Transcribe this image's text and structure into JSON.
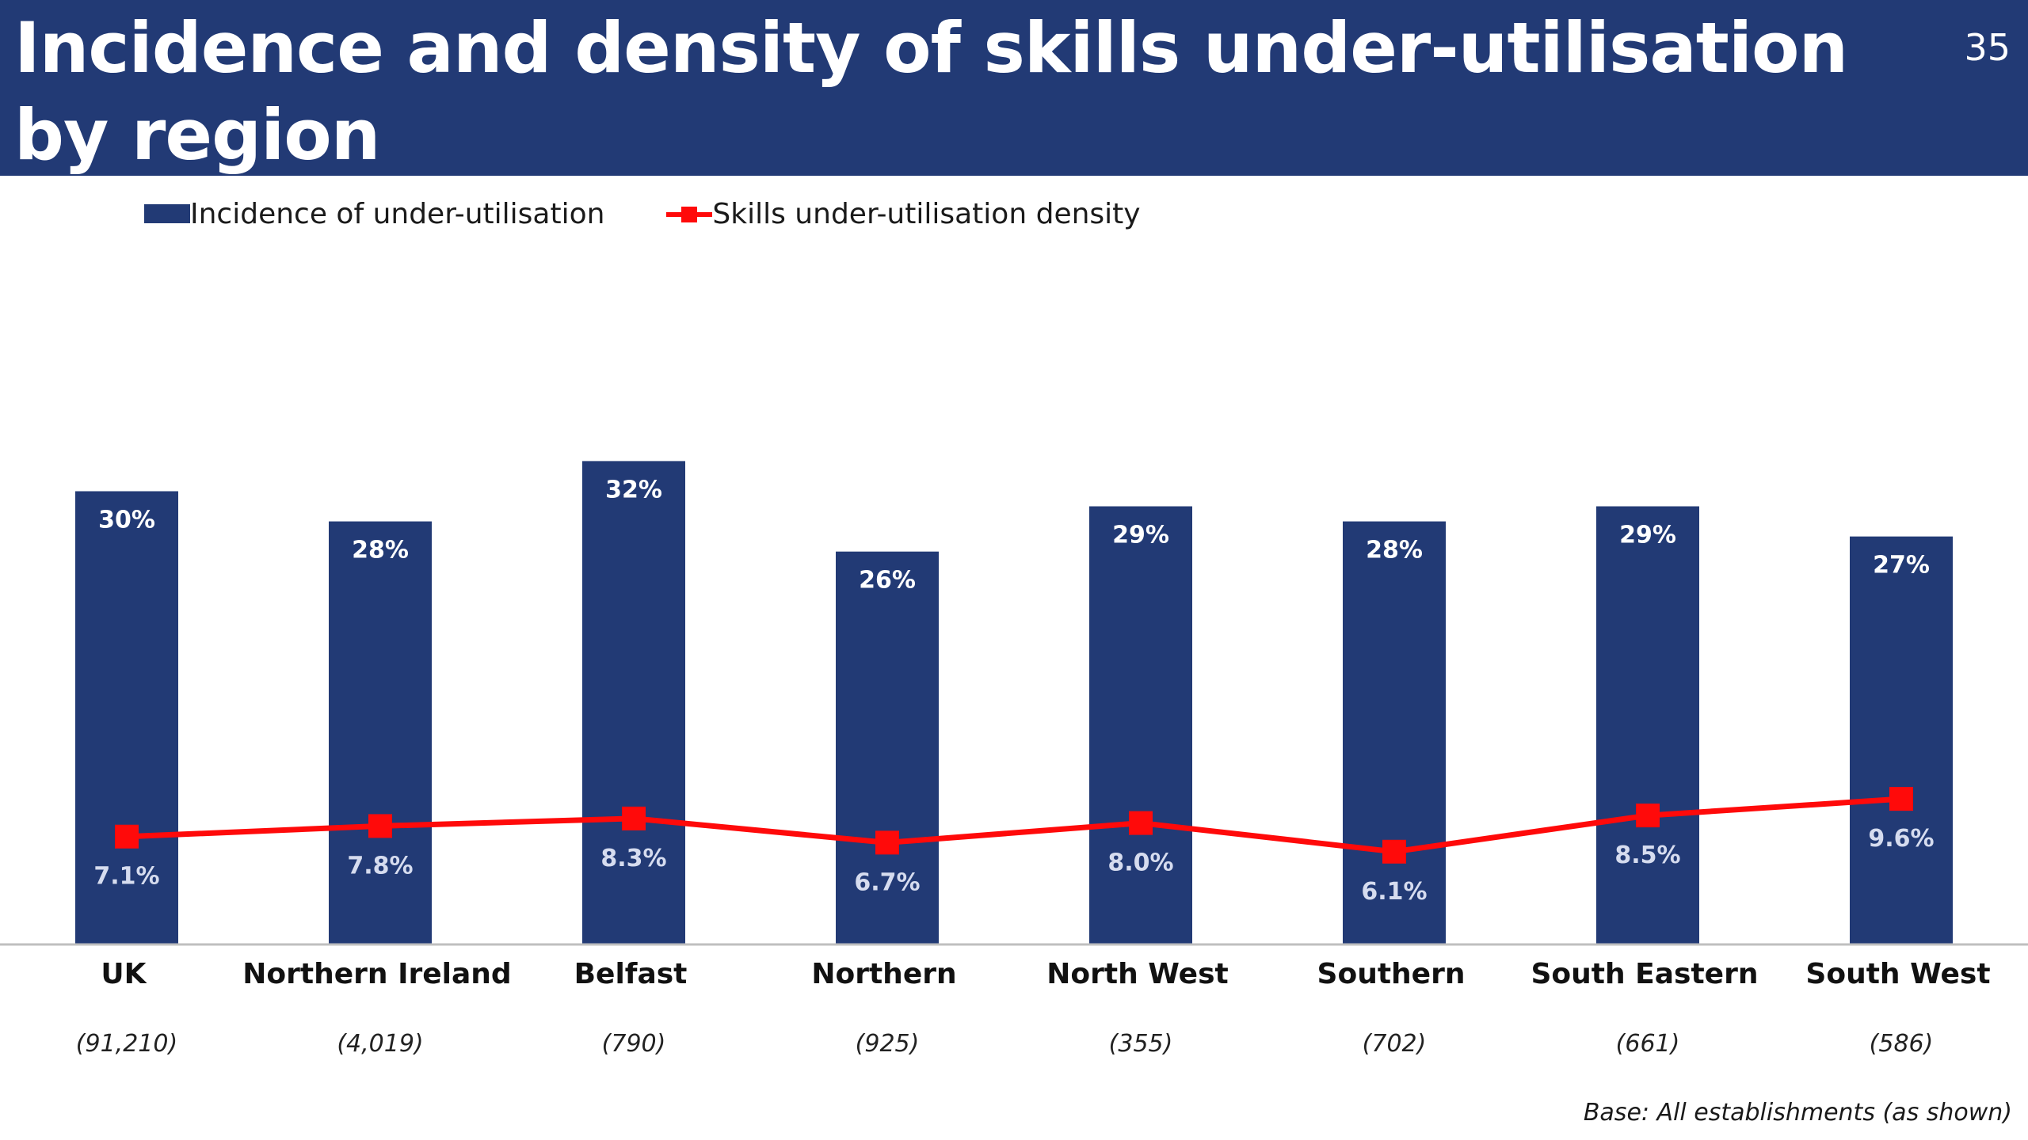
{
  "header": {
    "title": "Incidence and density of skills under-utilisation by region",
    "page_number": "35"
  },
  "legend": {
    "bar_label": "Incidence of under-utilisation",
    "line_label": "Skills under-utilisation density"
  },
  "footnote": "Base: All establishments (as shown)",
  "colors": {
    "header_bg": "#223a75",
    "bar": "#223a75",
    "line": "#ff0a0a",
    "axis": "#bfbfbf"
  },
  "chart_data": {
    "type": "bar",
    "categories": [
      "UK",
      "Northern Ireland",
      "Belfast",
      "Northern",
      "North West",
      "Southern",
      "South Eastern",
      "South West"
    ],
    "base_sizes": [
      "(91,210)",
      "(4,019)",
      "(790)",
      "(925)",
      "(355)",
      "(702)",
      "(661)",
      "(586)"
    ],
    "series": [
      {
        "name": "Incidence of under-utilisation",
        "type": "bar",
        "values": [
          30,
          28,
          32,
          26,
          29,
          28,
          29,
          27
        ],
        "labels": [
          "30%",
          "28%",
          "32%",
          "26%",
          "29%",
          "28%",
          "29%",
          "27%"
        ]
      },
      {
        "name": "Skills under-utilisation density",
        "type": "line",
        "values": [
          7.1,
          7.8,
          8.3,
          6.7,
          8.0,
          6.1,
          8.5,
          9.6
        ],
        "labels": [
          "7.1%",
          "7.8%",
          "8.3%",
          "6.7%",
          "8.0%",
          "6.1%",
          "8.5%",
          "9.6%"
        ]
      }
    ],
    "ylim": [
      0,
      50
    ],
    "grid": false,
    "legend_position": "top-left"
  }
}
